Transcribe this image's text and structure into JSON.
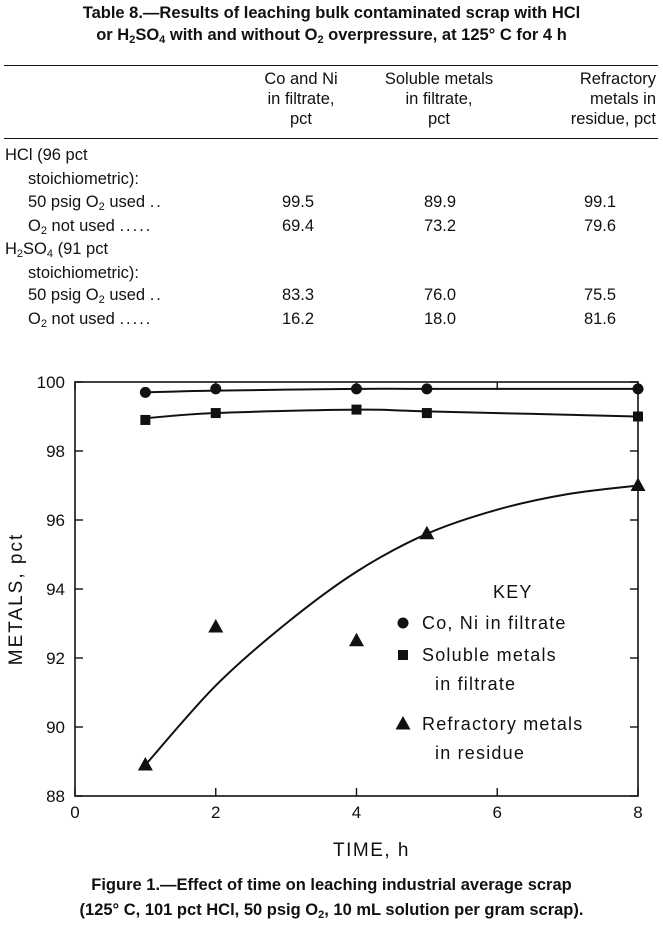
{
  "table": {
    "title_line1": "Table 8.—Results of leaching bulk contaminated scrap with HCl",
    "title_line2_a": "or H",
    "title_line2_sub1": "2",
    "title_line2_b": "SO",
    "title_line2_sub2": "4",
    "title_line2_c": " with and without O",
    "title_line2_sub3": "2",
    "title_line2_d": " overpressure, at 125° C for 4 h",
    "columns": [
      [
        "Co and Ni",
        "in filtrate,",
        "pct"
      ],
      [
        "Soluble metals",
        "in filtrate,",
        "pct"
      ],
      [
        "Refractory",
        "metals in",
        "residue, pct"
      ]
    ],
    "groups": [
      {
        "line1": "HCl (96 pct",
        "line1_sub": "",
        "line1_rest": "",
        "line2": "stoichiometric):",
        "rows": [
          {
            "label_a": "50 psig O",
            "label_sub": "2",
            "label_b": " used",
            "dots": "..",
            "values": [
              "99.5",
              "89.9",
              "99.1"
            ]
          },
          {
            "label_a": "O",
            "label_sub": "2",
            "label_b": " not used",
            "dots": ".....",
            "values": [
              "69.4",
              "73.2",
              "79.6"
            ]
          }
        ]
      },
      {
        "line1": "H",
        "line1_sub": "2",
        "line1_rest": "SO",
        "line1_sub2": "4",
        "line1_tail": " (91 pct",
        "line2": "stoichiometric):",
        "rows": [
          {
            "label_a": "50 psig O",
            "label_sub": "2",
            "label_b": " used",
            "dots": "..",
            "values": [
              "83.3",
              "76.0",
              "75.5"
            ]
          },
          {
            "label_a": "O",
            "label_sub": "2",
            "label_b": " not used",
            "dots": ".....",
            "values": [
              "16.2",
              "18.0",
              "81.6"
            ]
          }
        ]
      }
    ]
  },
  "chart_data": {
    "type": "scatter",
    "xlabel": "TIME, h",
    "ylabel": "METALS, pct",
    "xlim": [
      0,
      8
    ],
    "ylim": [
      88,
      100
    ],
    "xticks": [
      0,
      2,
      4,
      6,
      8
    ],
    "yticks": [
      88,
      90,
      92,
      94,
      96,
      98,
      100
    ],
    "legend_title": "KEY",
    "legend_position": "center-right",
    "series": [
      {
        "name": "Co, Ni in filtrate",
        "name_line2": "",
        "marker": "circle",
        "x": [
          1,
          2,
          4,
          5,
          8
        ],
        "y": [
          99.7,
          99.8,
          99.8,
          99.8,
          99.8
        ],
        "curve_x": [
          1,
          2,
          4,
          5,
          8
        ],
        "curve_y": [
          99.7,
          99.75,
          99.8,
          99.8,
          99.8
        ]
      },
      {
        "name": "Soluble metals",
        "name_line2": "in filtrate",
        "marker": "square",
        "x": [
          1,
          2,
          4,
          5,
          8
        ],
        "y": [
          98.9,
          99.1,
          99.2,
          99.1,
          99.0
        ],
        "curve_x": [
          1,
          2,
          4,
          5,
          8
        ],
        "curve_y": [
          98.95,
          99.1,
          99.2,
          99.15,
          99.0
        ]
      },
      {
        "name": "Refractory metals",
        "name_line2": "in residue",
        "marker": "triangle",
        "x": [
          1,
          2,
          4,
          5,
          8
        ],
        "y": [
          88.9,
          92.9,
          92.5,
          95.6,
          97.0
        ],
        "curve_x": [
          1,
          2,
          3,
          4,
          5,
          6,
          7,
          8
        ],
        "curve_y": [
          88.9,
          91.2,
          93.0,
          94.5,
          95.6,
          96.3,
          96.75,
          97.0
        ]
      }
    ]
  },
  "figure": {
    "caption_line1": "Figure 1.—Effect of time on leaching industrial average scrap",
    "caption_line2_a": "(125° C, 101 pct HCl, 50 psig O",
    "caption_line2_sub": "2",
    "caption_line2_b": ", 10 mL solution per gram scrap)."
  }
}
